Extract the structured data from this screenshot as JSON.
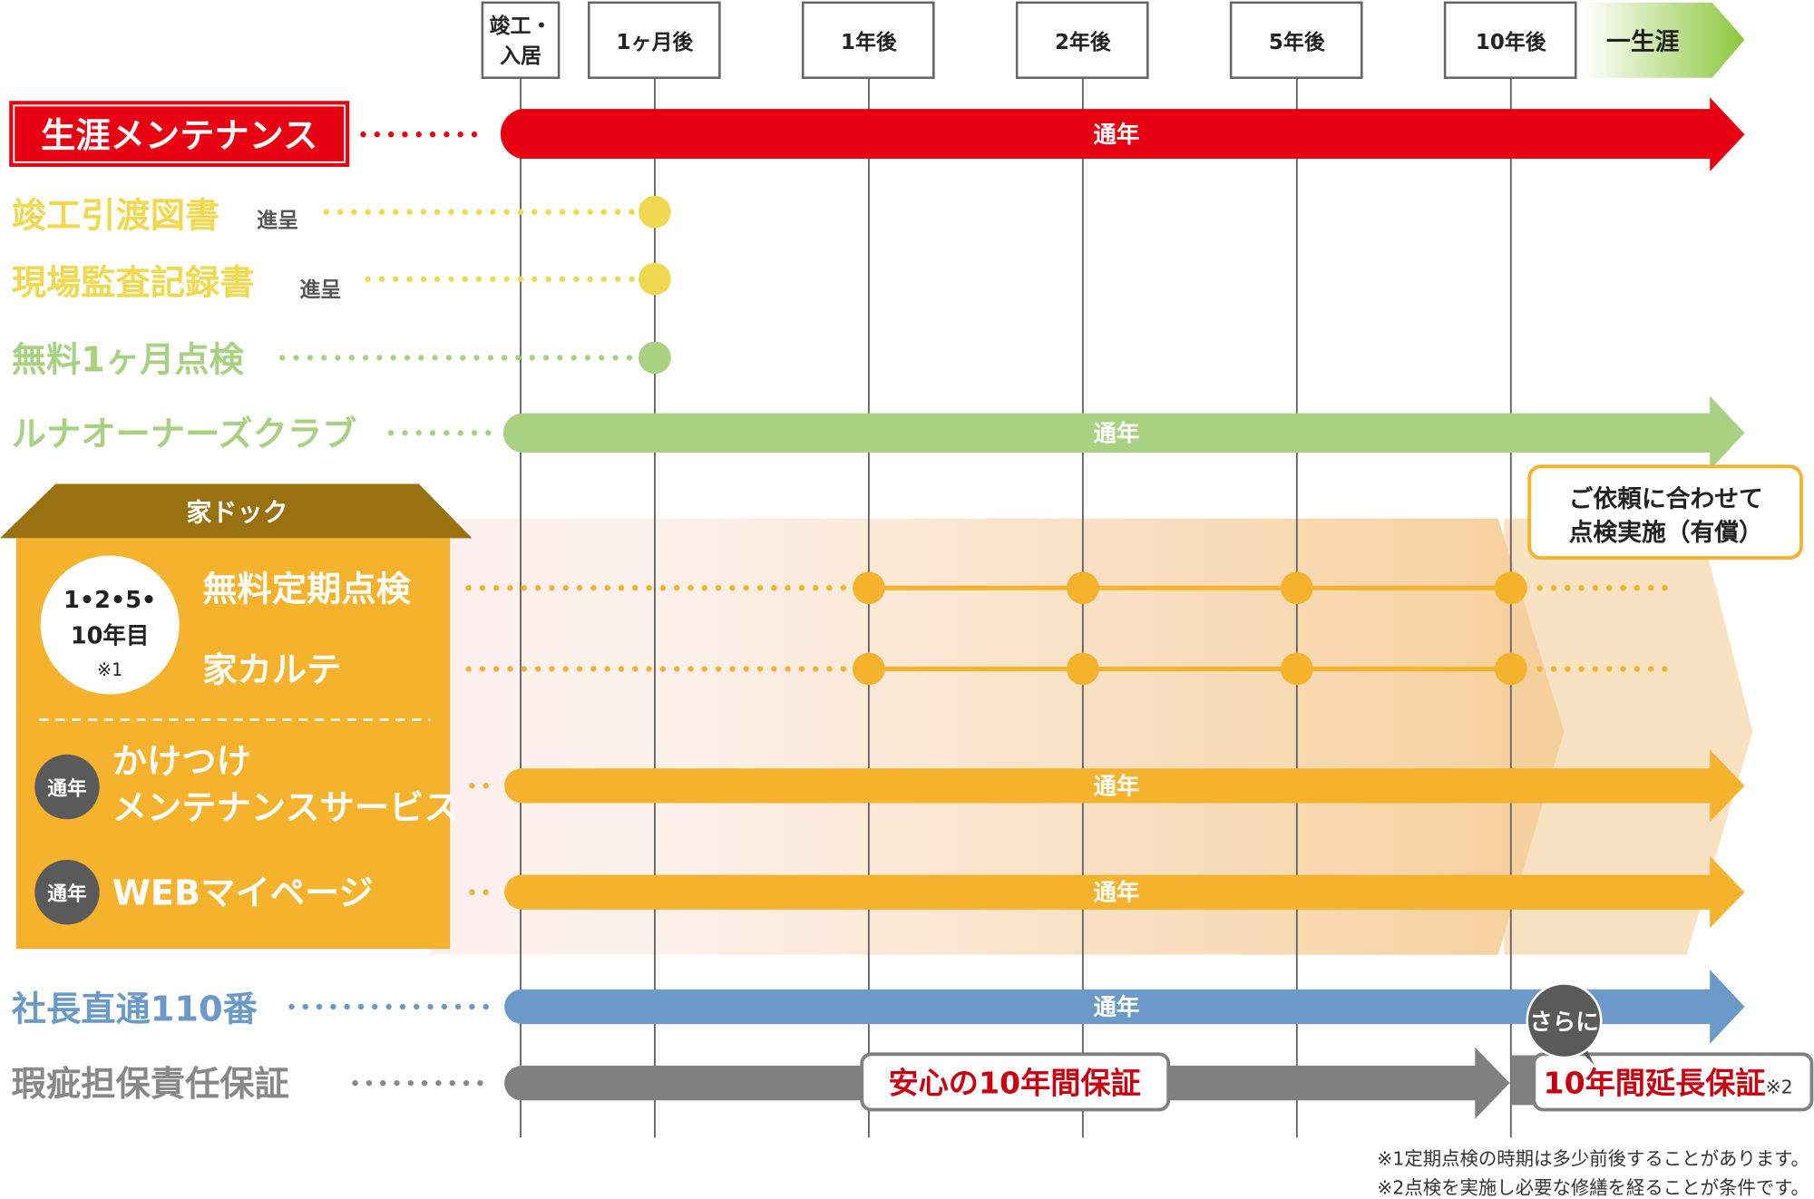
{
  "timeline": {
    "columns": [
      "竣工・",
      "入居",
      "1ヶ月後",
      "1年後",
      "2年後",
      "5年後",
      "10年後"
    ],
    "lifetime": "一生涯"
  },
  "common": {
    "year_round": "通年"
  },
  "rows": {
    "lifetime_maintenance": "生涯メンテナンス",
    "completion_docs": "竣工引渡図書",
    "inspection_records": "現場監査記録書",
    "gift": "進呈",
    "free_1month": "無料1ヶ月点検",
    "owners_club": "ルナオーナーズクラブ",
    "president_hotline": "社長直通110番",
    "defect_warranty": "瑕疵担保責任保証"
  },
  "ie_dock": {
    "title": "家ドック",
    "badge_lines": [
      "1•2•5•",
      "10年目",
      "※1"
    ],
    "free_inspection": "無料定期点検",
    "karte": "家カルテ",
    "rush_lines": [
      "かけつけ",
      "メンテナンスサービス"
    ],
    "web": "WEBマイページ",
    "callout_lines": [
      "ご依頼に合わせて",
      "点検実施（有償）"
    ]
  },
  "warranty": {
    "ten_year": "安心の10年間保証",
    "further": "さらに",
    "extension": "10年間延長保証",
    "extension_note": "※2"
  },
  "footnotes": [
    "※1定期点検の時期は多少前後することがあります。",
    "※2点検を実施し必要な修繕を経ることが条件です。"
  ],
  "colors": {
    "red": "#e60012",
    "yellow": "#f0d850",
    "green": "#a8d282",
    "orange": "#f5b22d",
    "brown": "#9a7110",
    "blue": "#6b9ac8",
    "gray": "#808080",
    "dark": "#5a5a5a"
  }
}
